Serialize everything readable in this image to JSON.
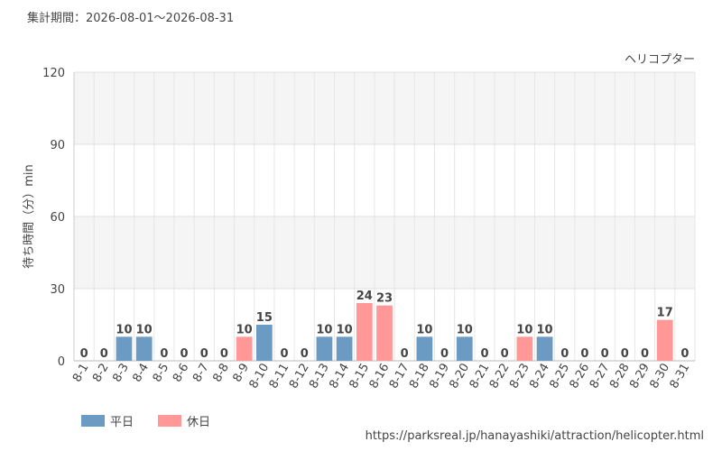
{
  "chart_data": {
    "type": "bar",
    "title": "集計期間：2026-08-01～2026-08-31",
    "subtitle": "ヘリコプター",
    "y_label": "待ち時間（分）min",
    "source": "https://parksreal.jp/hanayashiki/attraction/helicopter.html",
    "categories": [
      "8-1",
      "8-2",
      "8-3",
      "8-4",
      "8-5",
      "8-6",
      "8-7",
      "8-8",
      "8-9",
      "8-10",
      "8-11",
      "8-12",
      "8-13",
      "8-14",
      "8-15",
      "8-16",
      "8-17",
      "8-18",
      "8-19",
      "8-20",
      "8-21",
      "8-22",
      "8-23",
      "8-24",
      "8-25",
      "8-26",
      "8-27",
      "8-28",
      "8-29",
      "8-30",
      "8-31"
    ],
    "series": [
      {
        "name": "平日",
        "color": "#6b9bc3",
        "values": [
          null,
          null,
          10,
          10,
          0,
          0,
          0,
          null,
          null,
          15,
          null,
          0,
          10,
          10,
          null,
          null,
          0,
          10,
          0,
          10,
          0,
          null,
          null,
          10,
          0,
          0,
          0,
          0,
          null,
          null,
          0
        ]
      },
      {
        "name": "休日",
        "color": "#ff9896",
        "values": [
          0,
          0,
          null,
          null,
          null,
          null,
          null,
          0,
          10,
          null,
          0,
          null,
          null,
          null,
          24,
          23,
          null,
          null,
          null,
          null,
          null,
          0,
          10,
          null,
          null,
          null,
          null,
          null,
          0,
          17,
          null
        ]
      }
    ],
    "ylim": [
      0,
      120
    ],
    "yticks": [
      0,
      30,
      60,
      90,
      120
    ],
    "grid": true
  }
}
